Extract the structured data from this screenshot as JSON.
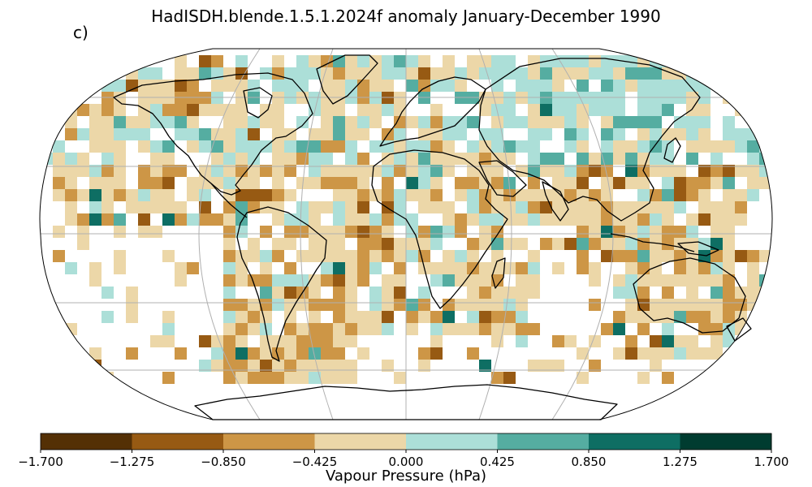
{
  "title": "HadISDH.blende.1.5.1.2024f anomaly January-December 1990",
  "panel_label": "c)",
  "colorbar": {
    "label": "Vapour Pressure (hPa)",
    "ticks": [
      "−1.700",
      "−1.275",
      "−0.850",
      "−0.425",
      "0.000",
      "0.425",
      "0.850",
      "1.275",
      "1.700"
    ],
    "bins": [
      {
        "from": -1.7,
        "to": -1.275,
        "color": "#543005"
      },
      {
        "from": -1.275,
        "to": -0.85,
        "color": "#975a13"
      },
      {
        "from": -0.85,
        "to": -0.425,
        "color": "#cd9646"
      },
      {
        "from": -0.425,
        "to": 0.0,
        "color": "#ecd7a8"
      },
      {
        "from": 0.0,
        "to": 0.425,
        "color": "#acdfd8"
      },
      {
        "from": 0.425,
        "to": 0.85,
        "color": "#55ada1"
      },
      {
        "from": 0.85,
        "to": 1.275,
        "color": "#0e6e63"
      },
      {
        "from": 1.275,
        "to": 1.7,
        "color": "#003c30"
      }
    ]
  },
  "map": {
    "projection": "Robinson",
    "gridlines": true
  }
}
